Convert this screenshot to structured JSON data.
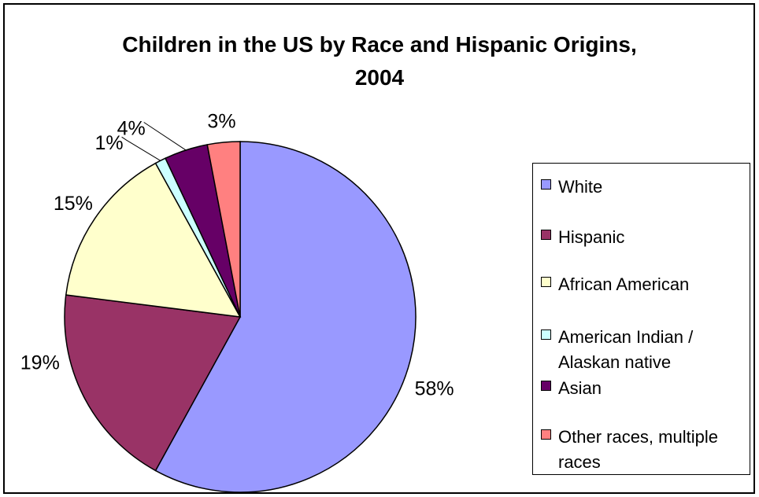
{
  "chart_data": {
    "type": "pie",
    "title_lines": [
      "Children in the US by Race and Hispanic Origins,",
      "2004"
    ],
    "slices": [
      {
        "name": "White",
        "value": 58,
        "label": "58%",
        "color": "#9999ff"
      },
      {
        "name": "Hispanic",
        "value": 19,
        "label": "19%",
        "color": "#993366"
      },
      {
        "name": "African American",
        "value": 15,
        "label": "15%",
        "color": "#ffffcc"
      },
      {
        "name": "American Indian / Alaskan native",
        "value": 1,
        "label": "1%",
        "color": "#ccffff"
      },
      {
        "name": "Asian",
        "value": 4,
        "label": "4%",
        "color": "#660066"
      },
      {
        "name": "Other races, multiple races",
        "value": 3,
        "label": "3%",
        "color": "#ff8080"
      }
    ],
    "legend": {
      "placement": "right",
      "items": [
        [
          "White"
        ],
        [
          "Hispanic"
        ],
        [
          "African American"
        ],
        [
          "American Indian /",
          "Alaskan native"
        ],
        [
          "Asian"
        ],
        [
          "Other races, multiple",
          "races"
        ]
      ]
    }
  }
}
